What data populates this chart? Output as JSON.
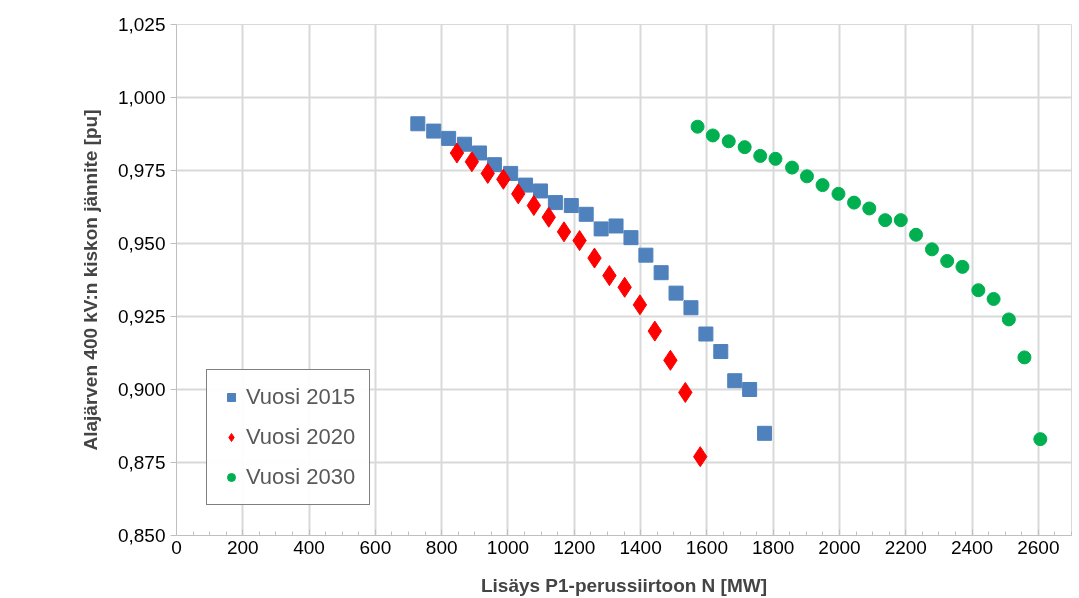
{
  "chart_data": {
    "type": "scatter",
    "xlabel": "Lisäys P1-perussiirtoon N [MW]",
    "ylabel": "Alajärven 400 kV:n kiskon jännite [pu]",
    "xlim": [
      0,
      2700
    ],
    "xticks": [
      0,
      200,
      400,
      600,
      800,
      1000,
      1200,
      1400,
      1600,
      1800,
      2000,
      2200,
      2400,
      2600
    ],
    "ylim": [
      0.85,
      1.025
    ],
    "yticks": [
      {
        "value": 0.85,
        "label": "0,850"
      },
      {
        "value": 0.875,
        "label": "0,875"
      },
      {
        "value": 0.9,
        "label": "0,900"
      },
      {
        "value": 0.925,
        "label": "0,925"
      },
      {
        "value": 0.95,
        "label": "0,950"
      },
      {
        "value": 0.975,
        "label": "0,975"
      },
      {
        "value": 1.0,
        "label": "1,000"
      },
      {
        "value": 1.025,
        "label": "1,025"
      }
    ],
    "grid": true,
    "legend": "bottom left",
    "series": [
      {
        "name": "Vuosi 2015",
        "color": "#4f81bd",
        "marker": "square",
        "x": [
          728,
          776,
          821,
          869,
          914,
          959,
          1008,
          1053,
          1098,
          1143,
          1191,
          1236,
          1281,
          1326,
          1371,
          1416,
          1462,
          1507,
          1552,
          1597,
          1642,
          1684,
          1729,
          1774
        ],
        "values": [
          0.991,
          0.9885,
          0.986,
          0.984,
          0.981,
          0.977,
          0.974,
          0.97,
          0.968,
          0.964,
          0.963,
          0.96,
          0.955,
          0.956,
          0.952,
          0.946,
          0.94,
          0.933,
          0.928,
          0.919,
          0.913,
          0.903,
          0.9,
          0.885
        ]
      },
      {
        "name": "Vuosi 2020",
        "color": "#ff0000",
        "marker": "diamond",
        "x": [
          846,
          891,
          939,
          986,
          1031,
          1078,
          1123,
          1169,
          1216,
          1261,
          1306,
          1352,
          1398,
          1443,
          1490,
          1535,
          1580
        ],
        "values": [
          0.981,
          0.978,
          0.974,
          0.972,
          0.967,
          0.963,
          0.959,
          0.954,
          0.951,
          0.945,
          0.939,
          0.935,
          0.929,
          0.92,
          0.91,
          0.899,
          0.877
        ]
      },
      {
        "name": "Vuosi 2030",
        "color": "#00b050",
        "marker": "circle",
        "x": [
          1572,
          1618,
          1666,
          1714,
          1761,
          1807,
          1857,
          1902,
          1949,
          1997,
          2044,
          2090,
          2138,
          2185,
          2231,
          2279,
          2325,
          2371,
          2419,
          2465,
          2511,
          2558,
          2606
        ],
        "values": [
          0.99,
          0.987,
          0.985,
          0.983,
          0.98,
          0.979,
          0.976,
          0.973,
          0.97,
          0.967,
          0.964,
          0.962,
          0.958,
          0.958,
          0.953,
          0.948,
          0.944,
          0.942,
          0.934,
          0.931,
          0.924,
          0.911,
          0.883
        ]
      }
    ]
  }
}
